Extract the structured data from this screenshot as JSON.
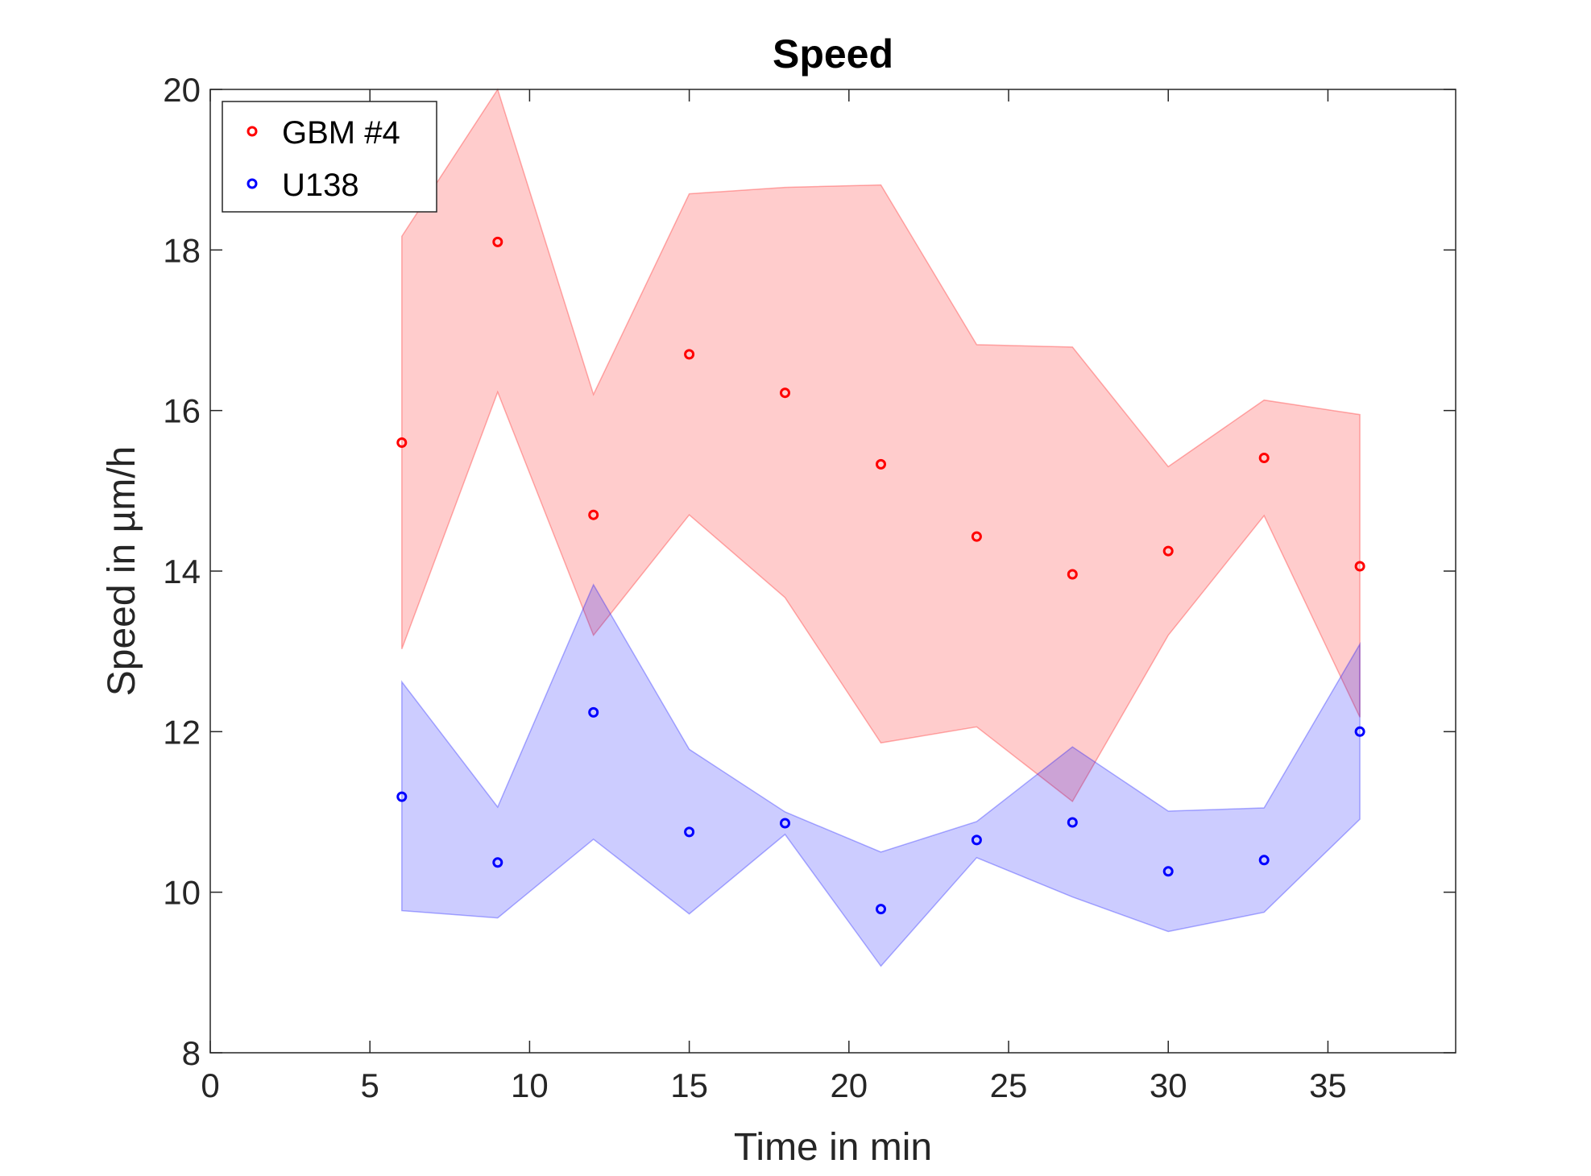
{
  "chart_data": {
    "type": "scatter",
    "title": "Speed",
    "xlabel": "Time in min",
    "ylabel": "Speed in µm/h",
    "xlim": [
      0,
      39
    ],
    "ylim": [
      8,
      20
    ],
    "x_ticks": [
      0,
      5,
      10,
      15,
      20,
      25,
      30,
      35
    ],
    "y_ticks": [
      8,
      10,
      12,
      14,
      16,
      18,
      20
    ],
    "grid": false,
    "legend_position": "top-left",
    "series": [
      {
        "name": "GBM #4",
        "color": "#ff0000",
        "band_color": "#ff0000",
        "x": [
          6,
          9,
          12,
          15,
          18,
          21,
          24,
          27,
          30,
          33,
          36
        ],
        "y": [
          15.6,
          18.1,
          14.7,
          16.7,
          16.22,
          15.33,
          14.43,
          13.96,
          14.25,
          15.41,
          14.06
        ],
        "upper": [
          18.17,
          20.0,
          16.2,
          18.7,
          18.78,
          18.81,
          16.82,
          16.79,
          15.3,
          16.13,
          15.95
        ],
        "lower": [
          13.03,
          16.23,
          13.2,
          14.7,
          13.67,
          11.86,
          12.06,
          11.13,
          13.2,
          14.69,
          12.18
        ]
      },
      {
        "name": "U138",
        "color": "#0000ff",
        "band_color": "#0000ff",
        "x": [
          6,
          9,
          12,
          15,
          18,
          21,
          24,
          27,
          30,
          33,
          36
        ],
        "y": [
          11.19,
          10.37,
          12.24,
          10.75,
          10.86,
          9.79,
          10.65,
          10.87,
          10.26,
          10.4,
          12.0
        ],
        "upper": [
          12.62,
          11.06,
          13.83,
          11.78,
          11.0,
          10.5,
          10.88,
          11.81,
          11.01,
          11.05,
          13.09
        ],
        "lower": [
          9.77,
          9.68,
          10.66,
          9.73,
          10.72,
          9.08,
          10.43,
          9.94,
          9.51,
          9.75,
          10.91
        ]
      }
    ]
  }
}
